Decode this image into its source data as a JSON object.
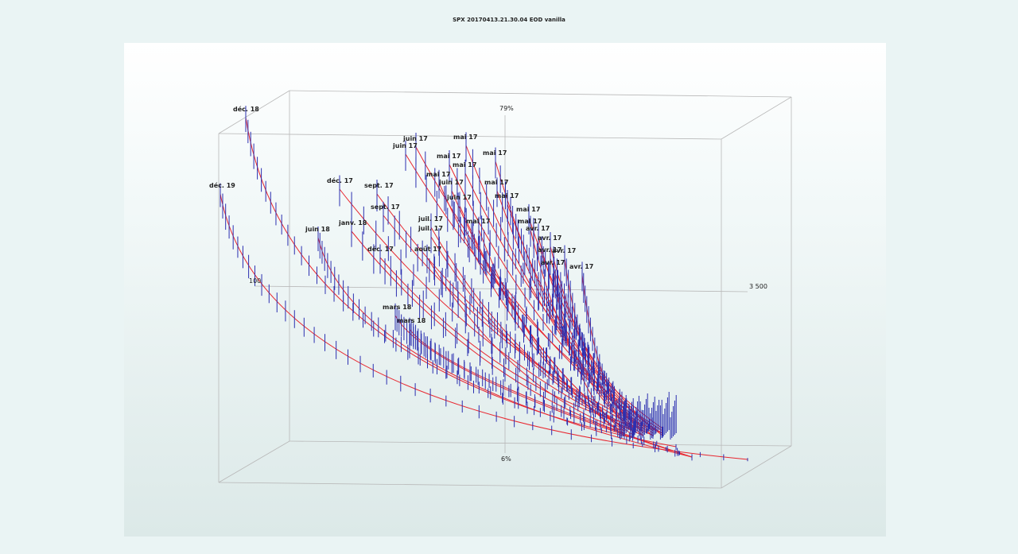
{
  "title": "SPX 20170413.21.30.04  EOD vanilla",
  "colors": {
    "fit_curve": "#e8262f",
    "market_bar": "#2b2fb0",
    "box": "#b8b8b8",
    "background": "#ffffff"
  },
  "chart_data": {
    "type": "surface3d",
    "title": "SPX 20170413.21.30.04  EOD vanilla",
    "axis_labels": {
      "vol_top": "79%",
      "vol_bottom": "6%",
      "strike_low": "100",
      "strike_high": "3 500"
    },
    "zlim": [
      0.06,
      0.79
    ],
    "strike_range": [
      100,
      3500
    ],
    "series_style": "red fitted volatility curves per expiry with blue vertical bid/ask market bars",
    "expiries": [
      "déc. 19",
      "déc. 18",
      "juin 18",
      "mars 18",
      "mars 18",
      "janv. 18",
      "déc. 17",
      "déc. 17",
      "sept. 17",
      "sept. 17",
      "août 17",
      "juil. 17",
      "juil. 17",
      "juin 17",
      "juin 17",
      "juin 17",
      "juin 17",
      "mai 17",
      "mai 17",
      "mai 17",
      "mai 17",
      "mai 17",
      "mai 17",
      "mai 17",
      "mai 17",
      "mai 17",
      "mai 17",
      "avr. 17",
      "avr. 17",
      "avr. 17",
      "avr. 17",
      "avr. 17",
      "avr. 17"
    ]
  }
}
